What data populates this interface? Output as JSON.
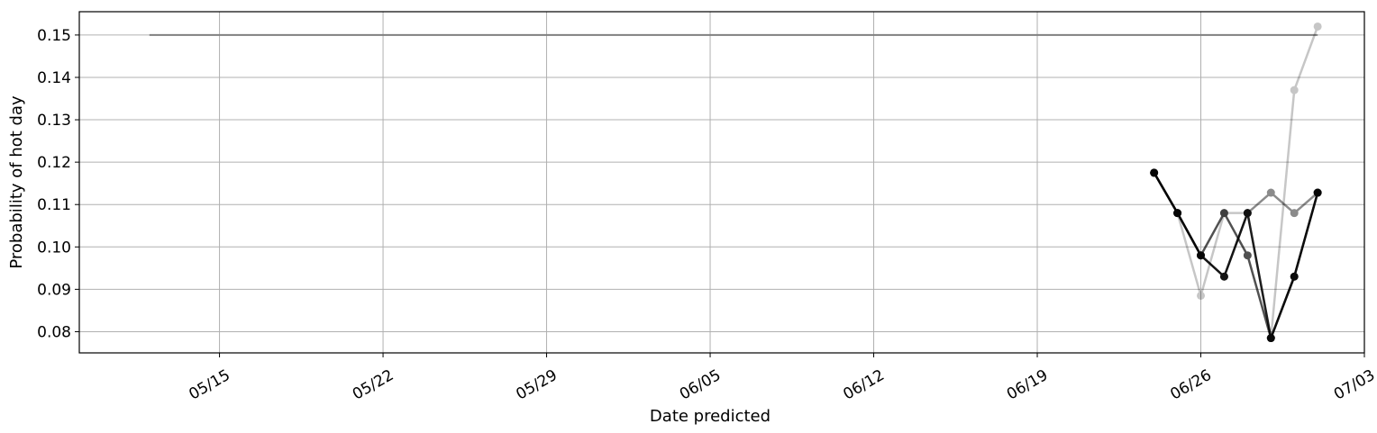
{
  "chart_data": {
    "type": "line",
    "title": "",
    "xlabel": "Date predicted",
    "ylabel": "Probability of hot day",
    "x_tick_labels": [
      "05/15",
      "05/22",
      "05/29",
      "06/05",
      "06/12",
      "06/19",
      "06/26",
      "07/03"
    ],
    "y_tick_labels": [
      "0.08",
      "0.09",
      "0.10",
      "0.11",
      "0.12",
      "0.13",
      "0.14",
      "0.15"
    ],
    "x_ticks": [
      "2023-05-15",
      "2023-05-22",
      "2023-05-29",
      "2023-06-05",
      "2023-06-12",
      "2023-06-19",
      "2023-06-26",
      "2023-07-03"
    ],
    "y_ticks": [
      0.08,
      0.09,
      0.1,
      0.11,
      0.12,
      0.13,
      0.14,
      0.15
    ],
    "xlim": [
      "2023-05-09",
      "2023-07-03"
    ],
    "ylim": [
      0.075,
      0.1555
    ],
    "grid": true,
    "legend": "none",
    "series": [
      {
        "color": "#808080",
        "opacity": 1,
        "markers": false,
        "width": 2,
        "points": [
          [
            "2023-05-12",
            0.15
          ],
          [
            "2023-07-01",
            0.15
          ]
        ]
      },
      {
        "color": "#000000",
        "opacity": 0.22,
        "markers": true,
        "width": 2.5,
        "points": [
          [
            "2023-06-24",
            0.1175
          ],
          [
            "2023-06-25",
            0.108
          ],
          [
            "2023-06-26",
            0.0885
          ],
          [
            "2023-06-27",
            0.108
          ],
          [
            "2023-06-28",
            0.108
          ],
          [
            "2023-06-29",
            0.0785
          ],
          [
            "2023-06-30",
            0.137
          ],
          [
            "2023-07-01",
            0.152
          ]
        ]
      },
      {
        "color": "#000000",
        "opacity": 0.45,
        "markers": true,
        "width": 2.5,
        "points": [
          [
            "2023-06-24",
            0.1175
          ],
          [
            "2023-06-25",
            0.108
          ],
          [
            "2023-06-26",
            0.098
          ],
          [
            "2023-06-27",
            0.093
          ],
          [
            "2023-06-28",
            0.108
          ],
          [
            "2023-06-29",
            0.1128
          ],
          [
            "2023-06-30",
            0.108
          ],
          [
            "2023-07-01",
            0.1128
          ]
        ]
      },
      {
        "color": "#000000",
        "opacity": 0.68,
        "markers": true,
        "width": 2.5,
        "points": [
          [
            "2023-06-24",
            0.1175
          ],
          [
            "2023-06-25",
            0.108
          ],
          [
            "2023-06-26",
            0.098
          ],
          [
            "2023-06-27",
            0.108
          ],
          [
            "2023-06-28",
            0.098
          ],
          [
            "2023-06-29",
            0.0785
          ],
          [
            "2023-06-30",
            0.093
          ],
          [
            "2023-07-01",
            0.1128
          ]
        ]
      },
      {
        "color": "#000000",
        "opacity": 0.85,
        "markers": true,
        "width": 2.5,
        "points": [
          [
            "2023-06-24",
            0.1175
          ],
          [
            "2023-06-25",
            0.108
          ],
          [
            "2023-06-26",
            0.098
          ],
          [
            "2023-06-27",
            0.093
          ],
          [
            "2023-06-28",
            0.108
          ],
          [
            "2023-06-29",
            0.0785
          ],
          [
            "2023-06-30",
            0.093
          ],
          [
            "2023-07-01",
            0.1128
          ]
        ]
      }
    ]
  }
}
